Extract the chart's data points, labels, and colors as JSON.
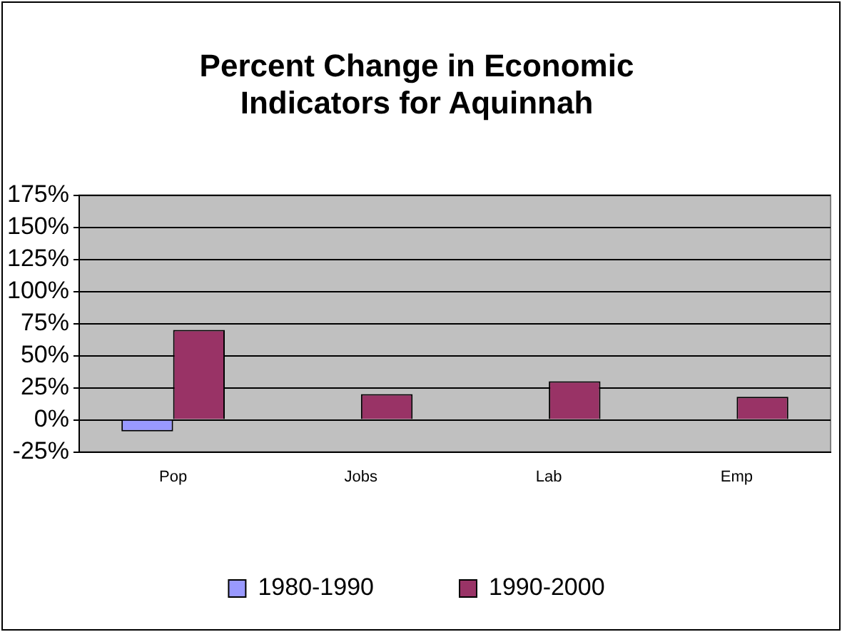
{
  "chart_data": {
    "type": "bar",
    "title": "Percent Change in Economic Indicators for Aquinnah",
    "categories": [
      "Pop",
      "Jobs",
      "Lab",
      "Emp"
    ],
    "series": [
      {
        "name": "1980-1990",
        "color": "#9999ff",
        "values": [
          -9,
          null,
          null,
          null
        ]
      },
      {
        "name": "1990-2000",
        "color": "#993366",
        "values": [
          70,
          20,
          30,
          18
        ]
      }
    ],
    "ylim": [
      -25,
      175
    ],
    "yticks": [
      {
        "value": -25,
        "label": "-25%"
      },
      {
        "value": 0,
        "label": "0%"
      },
      {
        "value": 25,
        "label": "25%"
      },
      {
        "value": 50,
        "label": "50%"
      },
      {
        "value": 75,
        "label": "75%"
      },
      {
        "value": 100,
        "label": "100%"
      },
      {
        "value": 125,
        "label": "125%"
      },
      {
        "value": 150,
        "label": "150%"
      },
      {
        "value": 175,
        "label": "175%"
      }
    ],
    "grid": "y",
    "legend": "bottom"
  }
}
